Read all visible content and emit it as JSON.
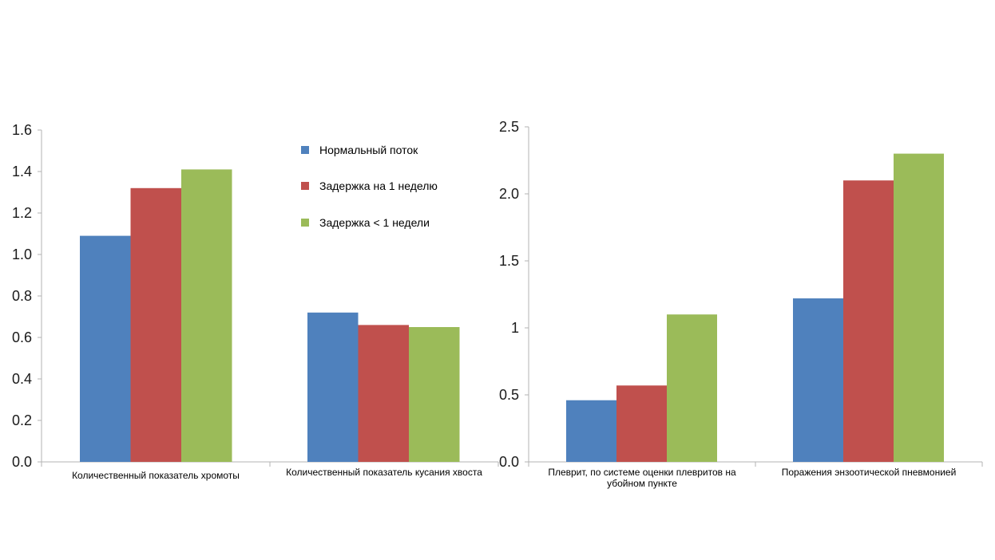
{
  "chart_data": [
    {
      "type": "bar",
      "categories": [
        "Количественный показатель хромоты",
        "Количественный показатель кусания хвоста"
      ],
      "series": [
        {
          "name": "Нормальный поток",
          "values": [
            1.09,
            0.72
          ]
        },
        {
          "name": "Задержка на 1 неделю",
          "values": [
            1.32,
            0.66
          ]
        },
        {
          "name": "Задержка < 1 недели",
          "values": [
            1.41,
            0.65
          ]
        }
      ],
      "ylim": [
        0,
        1.6
      ],
      "yticks": [
        "0.0",
        "0.2",
        "0.4",
        "0.6",
        "0.8",
        "1.0",
        "1.2",
        "1.4",
        "1.6"
      ],
      "legend": "top-right"
    },
    {
      "type": "bar",
      "categories": [
        "Плеврит, по системе оценки плевритов на убойном пункте",
        "Поражения энзоотической пневмонией"
      ],
      "series": [
        {
          "values": [
            0.46,
            1.22
          ]
        },
        {
          "values": [
            0.57,
            2.1
          ]
        },
        {
          "values": [
            1.1,
            2.3
          ]
        }
      ],
      "ylim": [
        0,
        2.5
      ],
      "yticks": [
        "0.0",
        "0.5",
        "1",
        "1.5",
        "2.0",
        "2.5"
      ]
    }
  ],
  "colors": [
    "#4f81bd",
    "#c0504d",
    "#9bbb59"
  ]
}
